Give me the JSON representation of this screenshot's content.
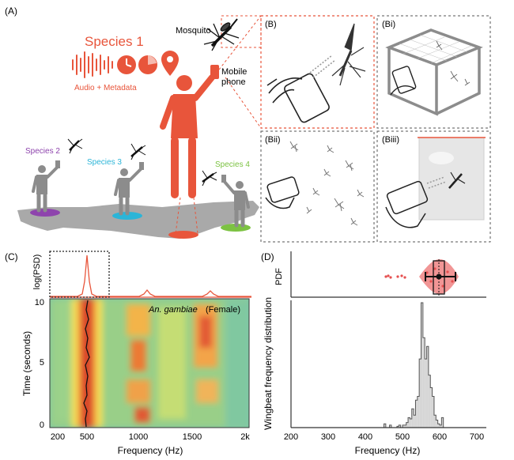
{
  "colors": {
    "accent": "#e8553b",
    "purple": "#8e44ad",
    "cyan": "#2bb5d8",
    "green": "#7cc242",
    "gray": "#8c8c8c",
    "map": "#a9a9a9",
    "pdf_red": "#e57373"
  },
  "panelA": {
    "label": "(A)",
    "species1": "Species 1",
    "species1_caption": "Audio + Metadata",
    "mosquito": "Mosquito",
    "mobile1": "Mobile",
    "mobile2": "phone",
    "species2": "Species 2",
    "species3": "Species 3",
    "species4": "Species 4"
  },
  "panelB": {
    "label": "(B)"
  },
  "panelBi": {
    "label": "(Bi)"
  },
  "panelBii": {
    "label": "(Bii)"
  },
  "panelBiii": {
    "label": "(Biii)"
  },
  "panelC": {
    "label": "(C)",
    "psd_ylabel": "log(PSD)",
    "ylabel": "Time (seconds)",
    "xlabel": "Frequency (Hz)",
    "species": "An. gambiae",
    "sex": "(Female)",
    "yticks": [
      "10",
      "5",
      "0"
    ],
    "xticks": [
      "200",
      "500",
      "1000",
      "1500",
      "2k"
    ]
  },
  "panelD": {
    "label": "(D)",
    "pdf_label": "PDF",
    "ylabel": "Wingbeat frequency distribution",
    "xlabel": "Frequency (Hz)",
    "xticks": [
      "200",
      "300",
      "400",
      "500",
      "600",
      "700"
    ]
  },
  "chart_data": [
    {
      "type": "heatmap",
      "panel": "C",
      "xlabel": "Frequency (Hz)",
      "ylabel": "Time (seconds)",
      "xlim": [
        200,
        2000
      ],
      "ylim": [
        0,
        10
      ],
      "band_centers_hz": [
        540,
        1080,
        1660
      ],
      "psd_peaks_hz": [
        540,
        1080,
        1660
      ]
    },
    {
      "type": "bar",
      "panel": "D",
      "xlabel": "Frequency (Hz)",
      "ylabel": "Wingbeat frequency distribution",
      "xlim": [
        200,
        700
      ],
      "bin_edges": [
        450,
        455,
        460,
        465,
        470,
        475,
        480,
        485,
        490,
        495,
        500,
        505,
        510,
        515,
        520,
        525,
        530,
        535,
        540,
        545,
        550,
        555,
        560,
        565,
        570,
        575,
        580,
        585,
        590,
        595,
        600,
        605,
        610
      ],
      "values": [
        0.03,
        0,
        0,
        0.02,
        0,
        0,
        0,
        0.01,
        0.02,
        0,
        0.02,
        0.02,
        0.04,
        0.08,
        0.07,
        0.15,
        0.1,
        0.22,
        0.25,
        0.55,
        1.0,
        0.72,
        0.55,
        0.65,
        0.42,
        0.32,
        0.25,
        0.1,
        0.06,
        0.03,
        0.02,
        0.08,
        0
      ]
    }
  ]
}
